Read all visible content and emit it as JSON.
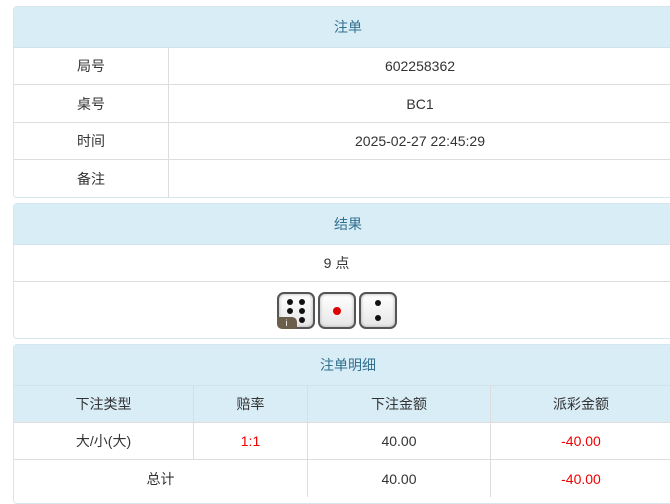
{
  "order": {
    "title": "注单",
    "rows": [
      {
        "label": "局号",
        "value": "602258362"
      },
      {
        "label": "桌号",
        "value": "BC1"
      },
      {
        "label": "时间",
        "value": "2025-02-27 22:45:29"
      },
      {
        "label": "备注",
        "value": ""
      }
    ]
  },
  "result": {
    "title": "结果",
    "points": "9 点",
    "dice": [
      6,
      1,
      2
    ],
    "dice_icons": [
      "die-six-icon",
      "die-one-icon",
      "die-two-icon"
    ],
    "badge": "i"
  },
  "details": {
    "title": "注单明细",
    "columns": [
      "下注类型",
      "赔率",
      "下注金额",
      "派彩金额"
    ],
    "rows": [
      {
        "type": "大/小(大)",
        "odds": "1:1",
        "bet": "40.00",
        "payout": "-40.00"
      }
    ],
    "total": {
      "label": "总计",
      "bet": "40.00",
      "payout": "-40.00"
    }
  },
  "colors": {
    "header_bg": "#d9edf7",
    "header_text": "#31708f",
    "negative": "#ee0000"
  }
}
